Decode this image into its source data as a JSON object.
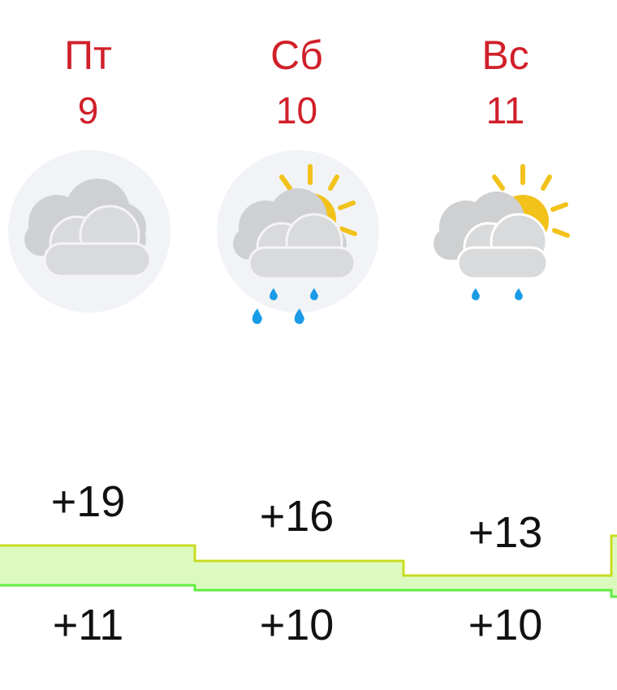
{
  "days": [
    {
      "weekday": "Пт",
      "date": "9",
      "icon": "cloudy-icon",
      "high": "+19",
      "low": "+11"
    },
    {
      "weekday": "Сб",
      "date": "10",
      "icon": "partly-cloudy-rain-icon",
      "high": "+16",
      "low": "+10"
    },
    {
      "weekday": "Вс",
      "date": "11",
      "icon": "partly-cloudy-light-rain-icon",
      "high": "+13",
      "low": "+10"
    }
  ],
  "colors": {
    "weekend": "#d0202a",
    "band_fill": "#dcfac0",
    "band_top": "#c8dc20",
    "band_bottom": "#60ee40"
  }
}
